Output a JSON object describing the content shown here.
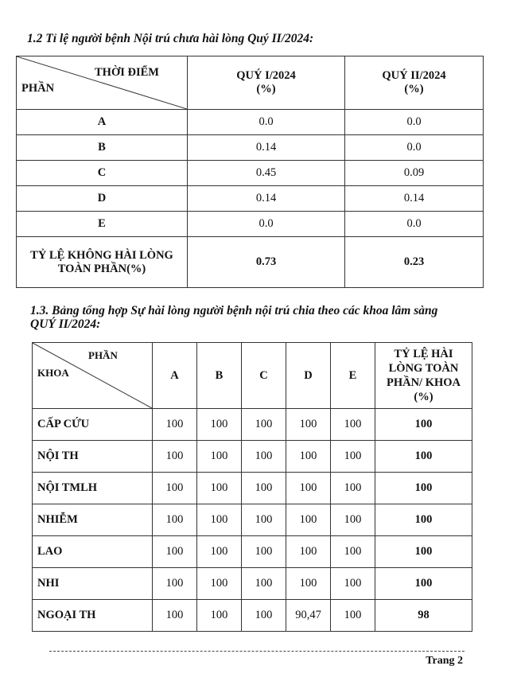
{
  "section1": {
    "title": "1.2 Tỉ lệ người bệnh Nội trú chưa hài lòng Quý II/2024:",
    "header": {
      "diag_top": "THỜI ĐIỂM",
      "diag_bottom": "PHẦN",
      "col1": "QUÝ I/2024",
      "col2": "QUÝ II/2024",
      "unit": "(%)"
    },
    "rows": [
      {
        "label": "A",
        "q1": "0.0",
        "q2": "0.0"
      },
      {
        "label": "B",
        "q1": "0.14",
        "q2": "0.0"
      },
      {
        "label": "C",
        "q1": "0.45",
        "q2": "0.09"
      },
      {
        "label": "D",
        "q1": "0.14",
        "q2": "0.14"
      },
      {
        "label": "E",
        "q1": "0.0",
        "q2": "0.0"
      }
    ],
    "total": {
      "label_line1": "TỶ LỆ  KHÔNG HÀI LÒNG",
      "label_line2": "TOÀN PHẦN(%)",
      "q1": "0.73",
      "q2": "0.23"
    }
  },
  "section2": {
    "title_line1": "1.3. Bảng tổng hợp Sự hài lòng người bệnh nội trú chia theo các khoa lâm sàng",
    "title_line2": "QUÝ II/2024:",
    "header": {
      "diag_top": "PHẦN",
      "diag_bottom": "KHOA",
      "cols": [
        "A",
        "B",
        "C",
        "D",
        "E"
      ],
      "total_l1": "TỶ LỆ HÀI",
      "total_l2": "LÒNG TOÀN",
      "total_l3": "PHẦN/ KHOA",
      "total_l4": "(%)"
    },
    "rows": [
      {
        "khoa": "CẤP CỨU",
        "v": [
          "100",
          "100",
          "100",
          "100",
          "100"
        ],
        "total": "100"
      },
      {
        "khoa": "NỘI TH",
        "v": [
          "100",
          "100",
          "100",
          "100",
          "100"
        ],
        "total": "100"
      },
      {
        "khoa": "NỘI TMLH",
        "v": [
          "100",
          "100",
          "100",
          "100",
          "100"
        ],
        "total": "100"
      },
      {
        "khoa": "NHIỄM",
        "v": [
          "100",
          "100",
          "100",
          "100",
          "100"
        ],
        "total": "100"
      },
      {
        "khoa": "LAO",
        "v": [
          "100",
          "100",
          "100",
          "100",
          "100"
        ],
        "total": "100"
      },
      {
        "khoa": "NHI",
        "v": [
          "100",
          "100",
          "100",
          "100",
          "100"
        ],
        "total": "100"
      },
      {
        "khoa": "NGOẠI TH",
        "v": [
          "100",
          "100",
          "100",
          "90,47",
          "100"
        ],
        "total": "98"
      }
    ]
  },
  "footer": {
    "page": "Trang 2"
  }
}
